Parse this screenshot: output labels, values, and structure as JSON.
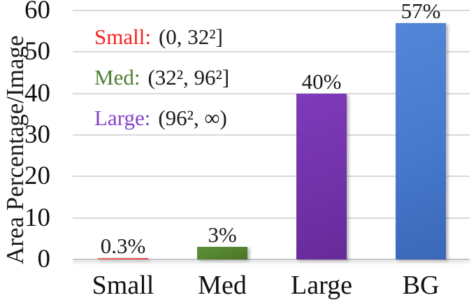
{
  "chart_data": {
    "type": "bar",
    "ylabel": "Area Percentage/Image",
    "xlabel": "",
    "ylim": [
      0,
      60
    ],
    "yticks": [
      0,
      10,
      20,
      30,
      40,
      50,
      60
    ],
    "grid": true,
    "legend_position": "upper-left-inside",
    "categories": [
      "Small",
      "Med",
      "Large",
      "BG"
    ],
    "values": [
      0.3,
      3,
      40,
      57
    ],
    "value_labels": [
      "0.3%",
      "3%",
      "40%",
      "57%"
    ],
    "bar_colors": [
      "#ee5555",
      "#53822f",
      "#7232a9",
      "#4678cc"
    ],
    "bar_colors_light": [
      "#f06b6b",
      "#5d9138",
      "#7d3ab9",
      "#5486d8"
    ],
    "bar_colors_dark": [
      "#e74a4a",
      "#4a7527",
      "#662a99",
      "#3b68b8"
    ],
    "annotations": [
      {
        "label": "Small:",
        "color": "#fa1e1e",
        "range": "(0, 32²]"
      },
      {
        "label": "Med:",
        "color": "#4e7e31",
        "range": "(32², 96²]"
      },
      {
        "label": "Large:",
        "color": "#8243cb",
        "range": "(96², ∞)"
      }
    ]
  }
}
